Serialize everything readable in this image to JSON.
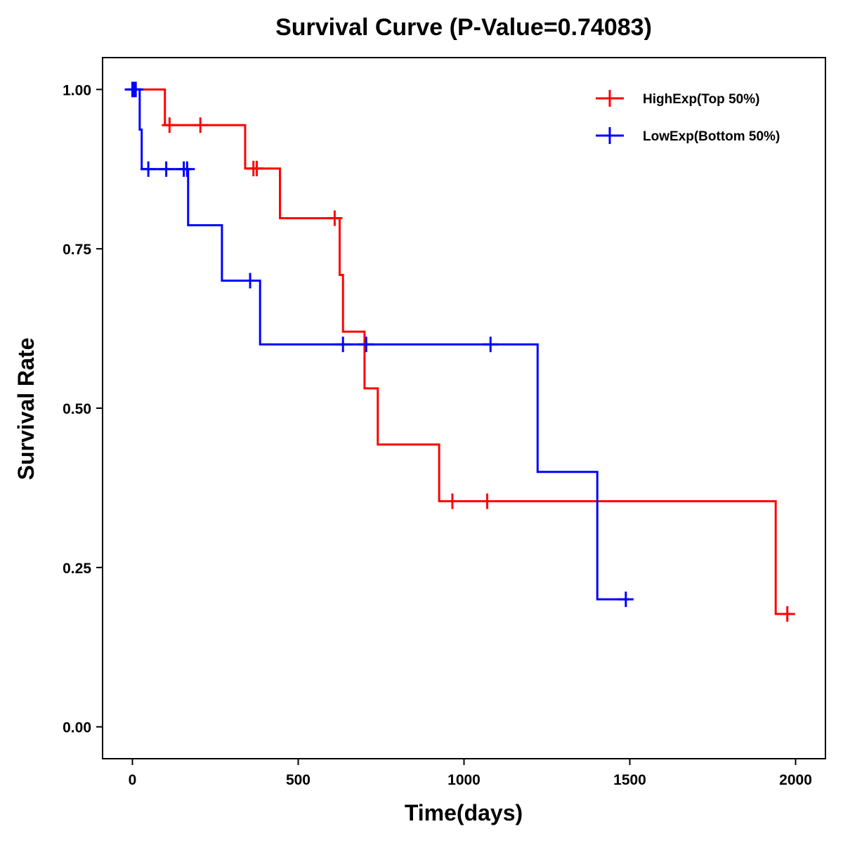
{
  "chart_data": {
    "type": "line",
    "title": "Survival Curve (P-Value=0.74083)",
    "xlabel": "Time(days)",
    "ylabel": "Survival Rate",
    "xlim": [
      -90,
      2090
    ],
    "ylim": [
      -0.05,
      1.05
    ],
    "xticks": [
      0,
      500,
      1000,
      1500,
      2000
    ],
    "xtick_labels": [
      "0",
      "500",
      "1000",
      "1500",
      "2000"
    ],
    "yticks": [
      0,
      0.25,
      0.5,
      0.75,
      1.0
    ],
    "ytick_labels": [
      "0.00",
      "0.25",
      "0.50",
      "0.75",
      "1.00"
    ],
    "legend_position": "top-right",
    "series": [
      {
        "name": "HighExp(Top 50%)",
        "color": "#ff0000",
        "steps": [
          [
            0,
            1.0
          ],
          [
            98,
            0.944
          ],
          [
            340,
            0.876
          ],
          [
            445,
            0.798
          ],
          [
            625,
            0.709
          ],
          [
            635,
            0.62
          ],
          [
            700,
            0.531
          ],
          [
            740,
            0.443
          ],
          [
            925,
            0.354
          ],
          [
            1940,
            0.177
          ]
        ],
        "end_time": 1975,
        "censored": [
          [
            112,
            0.944
          ],
          [
            205,
            0.944
          ],
          [
            365,
            0.876
          ],
          [
            375,
            0.876
          ],
          [
            610,
            0.798
          ],
          [
            965,
            0.354
          ],
          [
            1070,
            0.354
          ],
          [
            1975,
            0.177
          ]
        ]
      },
      {
        "name": "LowExp(Bottom 50%)",
        "color": "#0000ff",
        "steps": [
          [
            0,
            1.0
          ],
          [
            22,
            0.937
          ],
          [
            28,
            0.875
          ],
          [
            168,
            0.787
          ],
          [
            270,
            0.7
          ],
          [
            385,
            0.6
          ],
          [
            1222,
            0.4
          ],
          [
            1402,
            0.2
          ]
        ],
        "end_time": 1500,
        "censored": [
          [
            0,
            1.0
          ],
          [
            5,
            1.0
          ],
          [
            10,
            1.0
          ],
          [
            48,
            0.875
          ],
          [
            102,
            0.875
          ],
          [
            155,
            0.875
          ],
          [
            165,
            0.875
          ],
          [
            355,
            0.7
          ],
          [
            635,
            0.6
          ],
          [
            705,
            0.6
          ],
          [
            1080,
            0.6
          ],
          [
            1488,
            0.2
          ]
        ]
      }
    ]
  }
}
